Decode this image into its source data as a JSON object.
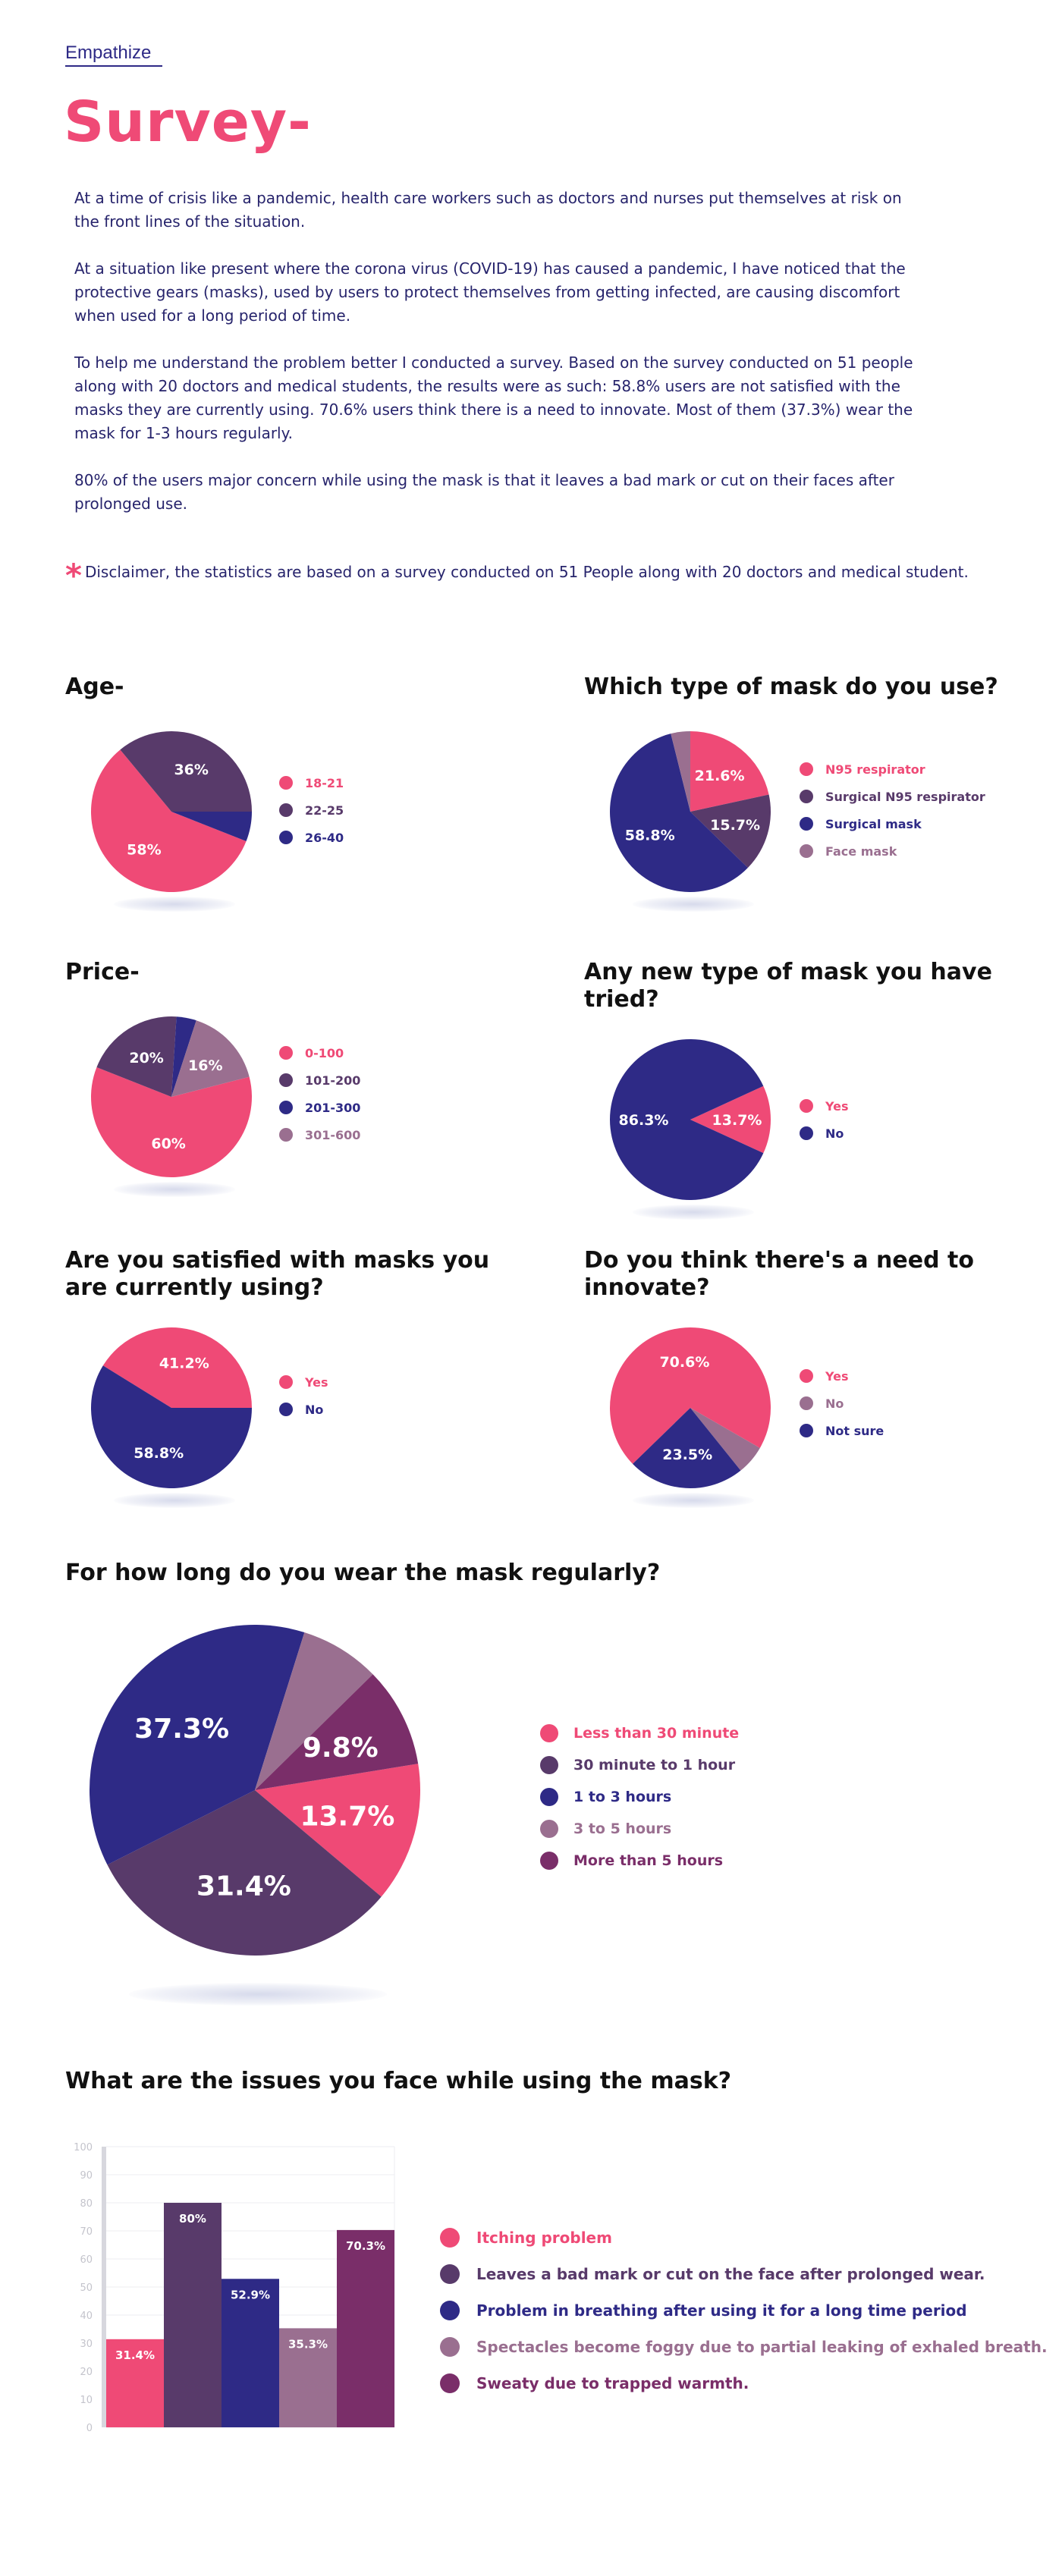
{
  "header": {
    "section_link": "Empathize",
    "title": "Survey-"
  },
  "intro": {
    "paragraphs": [
      "At a time of crisis like a pandemic, health care workers such as doctors and nurses put themselves at risk on the front lines of the situation.",
      "At a situation like present where the corona virus (COVID-19) has caused a pandemic, I have noticed that the protective gears (masks), used by users to protect themselves from getting infected, are causing discomfort when used for a long period of time.",
      "To help me understand the problem better I conducted a survey. Based on the survey conducted on 51 people along with 20 doctors and medical students, the results were as such: 58.8% users are not satisfied with the masks they are currently using. 70.6% users think there is a need to innovate. Most of them (37.3%) wear the mask for 1-3 hours regularly.",
      "80% of the users major concern while using the mask is that it leaves a bad mark or cut on their faces after prolonged use."
    ],
    "disclaimer_mark": "*",
    "disclaimer": "Disclaimer, the statistics are based on a survey conducted on 51 People along with 20 doctors and medical student."
  },
  "colors": {
    "pink": "#ef4a76",
    "plum": "#583a6a",
    "navy": "#2e2a86",
    "mauve": "#9a6f90",
    "magenta": "#7a2e69",
    "text": "#27246c"
  },
  "chart_data": [
    {
      "id": "age",
      "type": "pie",
      "title": "Age-",
      "labels": [
        "18-21",
        "22-25",
        "26-40"
      ],
      "values": [
        58,
        36,
        6
      ],
      "label_text": [
        "58%",
        "36%",
        ""
      ],
      "colors": [
        "#ef4a76",
        "#583a6a",
        "#2e2a86"
      ]
    },
    {
      "id": "mask_type",
      "type": "pie",
      "title": "Which type of mask do you use?",
      "labels": [
        "N95 respirator",
        "Surgical N95 respirator",
        "Surgical mask",
        "Face mask"
      ],
      "values": [
        21.6,
        15.7,
        58.8,
        3.9
      ],
      "label_text": [
        "21.6%",
        "15.7%",
        "58.8%",
        ""
      ],
      "colors": [
        "#ef4a76",
        "#583a6a",
        "#2e2a86",
        "#9a6f90"
      ]
    },
    {
      "id": "price",
      "type": "pie",
      "title": "Price-",
      "labels": [
        "0-100",
        "101-200",
        "201-300",
        "301-600"
      ],
      "values": [
        60,
        20,
        4,
        16
      ],
      "label_text": [
        "60%",
        "20%",
        "",
        "16%"
      ],
      "colors": [
        "#ef4a76",
        "#583a6a",
        "#2e2a86",
        "#9a6f90"
      ]
    },
    {
      "id": "new_mask",
      "type": "pie",
      "title": "Any new type of mask you have tried?",
      "labels": [
        "Yes",
        "No"
      ],
      "values": [
        13.7,
        86.3
      ],
      "label_text": [
        "13.7%",
        "86.3%"
      ],
      "colors": [
        "#ef4a76",
        "#2e2a86"
      ]
    },
    {
      "id": "satisfied",
      "type": "pie",
      "title": "Are you satisfied with masks you are currently using?",
      "labels": [
        "Yes",
        "No"
      ],
      "values": [
        41.2,
        58.8
      ],
      "label_text": [
        "41.2%",
        "58.8%"
      ],
      "colors": [
        "#ef4a76",
        "#2e2a86"
      ]
    },
    {
      "id": "innovate",
      "type": "pie",
      "title": "Do you think there's a need to innovate?",
      "labels": [
        "Yes",
        "No",
        "Not sure"
      ],
      "values": [
        70.6,
        5.9,
        23.5
      ],
      "label_text": [
        "70.6%",
        "",
        "23.5%"
      ],
      "colors": [
        "#ef4a76",
        "#9a6f90",
        "#2e2a86"
      ]
    },
    {
      "id": "duration",
      "type": "pie",
      "title": "For how long do you wear the mask regularly?",
      "labels": [
        "Less than 30 minute",
        "30 minute to 1 hour",
        "1 to 3 hours",
        "3 to 5 hours",
        "More than 5 hours"
      ],
      "values": [
        13.7,
        31.4,
        37.3,
        7.8,
        9.8
      ],
      "label_text": [
        "13.7%",
        "31.4%",
        "37.3%",
        "",
        "9.8%"
      ],
      "colors": [
        "#ef4a76",
        "#583a6a",
        "#2e2a86",
        "#9a6f90",
        "#7a2e69"
      ]
    },
    {
      "id": "issues",
      "type": "bar",
      "title": "What are the issues you face while using the mask?",
      "categories": [
        "Itching problem",
        "Leaves a bad mark or cut on the face after prolonged wear.",
        "Problem in breathing after using it for a long time period",
        "Spectacles become foggy due to partial leaking of exhaled breath.",
        "Sweaty due to trapped warmth."
      ],
      "values": [
        31.4,
        80,
        52.9,
        35.3,
        70.3
      ],
      "label_text": [
        "31.4%",
        "80%",
        "52.9%",
        "35.3%",
        "70.3%"
      ],
      "colors": [
        "#ef4a76",
        "#583a6a",
        "#2e2a86",
        "#9a6f90",
        "#7a2e69"
      ],
      "ylim": [
        0,
        100
      ],
      "yticks": [
        "0",
        "10",
        "20",
        "30",
        "40",
        "50",
        "60",
        "70",
        "80",
        "90",
        "100"
      ],
      "grid": true
    }
  ]
}
